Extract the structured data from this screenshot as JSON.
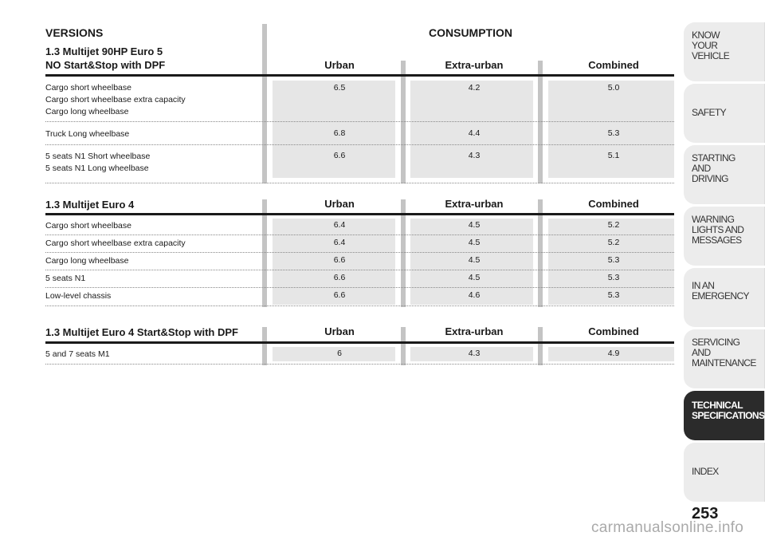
{
  "section1": {
    "versions_label": "VERSIONS",
    "consumption_label": "CONSUMPTION",
    "title_line1": "1.3 Multijet 90HP Euro 5",
    "title_line2": "NO Start&Stop with DPF",
    "col_urban": "Urban",
    "col_extra": "Extra-urban",
    "col_combined": "Combined",
    "rows": [
      {
        "labels": [
          "Cargo short wheelbase",
          "Cargo short wheelbase extra capacity",
          "Cargo long wheelbase"
        ],
        "urban": "6.5",
        "extra": "4.2",
        "combined": "5.0"
      },
      {
        "labels": [
          "Truck Long wheelbase"
        ],
        "urban": "6.8",
        "extra": "4.4",
        "combined": "5.3"
      },
      {
        "labels": [
          "5 seats N1 Short wheelbase",
          "5 seats N1 Long wheelbase"
        ],
        "urban": "6.6",
        "extra": "4.3",
        "combined": "5.1"
      }
    ]
  },
  "section2": {
    "title": "1.3 Multijet Euro 4",
    "col_urban": "Urban",
    "col_extra": "Extra-urban",
    "col_combined": "Combined",
    "rows": [
      {
        "label": "Cargo short wheelbase",
        "urban": "6.4",
        "extra": "4.5",
        "combined": "5.2"
      },
      {
        "label": "Cargo short wheelbase extra capacity",
        "urban": "6.4",
        "extra": "4.5",
        "combined": "5.2"
      },
      {
        "label": "Cargo long wheelbase",
        "urban": "6.6",
        "extra": "4.5",
        "combined": "5.3"
      },
      {
        "label": "5 seats N1",
        "urban": "6.6",
        "extra": "4.5",
        "combined": "5.3"
      },
      {
        "label": "Low-level chassis",
        "urban": "6.6",
        "extra": "4.6",
        "combined": "5.3"
      }
    ]
  },
  "section3": {
    "title": "1.3 Multijet Euro 4 Start&Stop with DPF",
    "col_urban": "Urban",
    "col_extra": "Extra-urban",
    "col_combined": "Combined",
    "rows": [
      {
        "label": "5 and 7 seats M1",
        "urban": "6",
        "extra": "4.3",
        "combined": "4.9"
      }
    ]
  },
  "side_tabs": [
    {
      "lines": [
        "KNOW",
        "YOUR",
        "VEHICLE"
      ],
      "active": false
    },
    {
      "lines": [
        "SAFETY"
      ],
      "active": false
    },
    {
      "lines": [
        "STARTING",
        "AND",
        "DRIVING"
      ],
      "active": false
    },
    {
      "lines": [
        "WARNING",
        "LIGHTS AND",
        "MESSAGES"
      ],
      "active": false
    },
    {
      "lines": [
        "IN AN",
        "EMERGENCY"
      ],
      "active": false
    },
    {
      "lines": [
        "SERVICING",
        "AND",
        "MAINTENANCE"
      ],
      "active": false
    },
    {
      "lines": [
        "TECHNICAL",
        "SPECIFICATIONS"
      ],
      "active": true
    },
    {
      "lines": [
        "INDEX"
      ],
      "active": false
    }
  ],
  "page_number": "253",
  "watermark": "carmanualsonline.info",
  "colors": {
    "bar": "#c4c4c4",
    "shade": "#e6e6e6",
    "active_tab": "#2b2b2b",
    "tab": "#ececec"
  }
}
